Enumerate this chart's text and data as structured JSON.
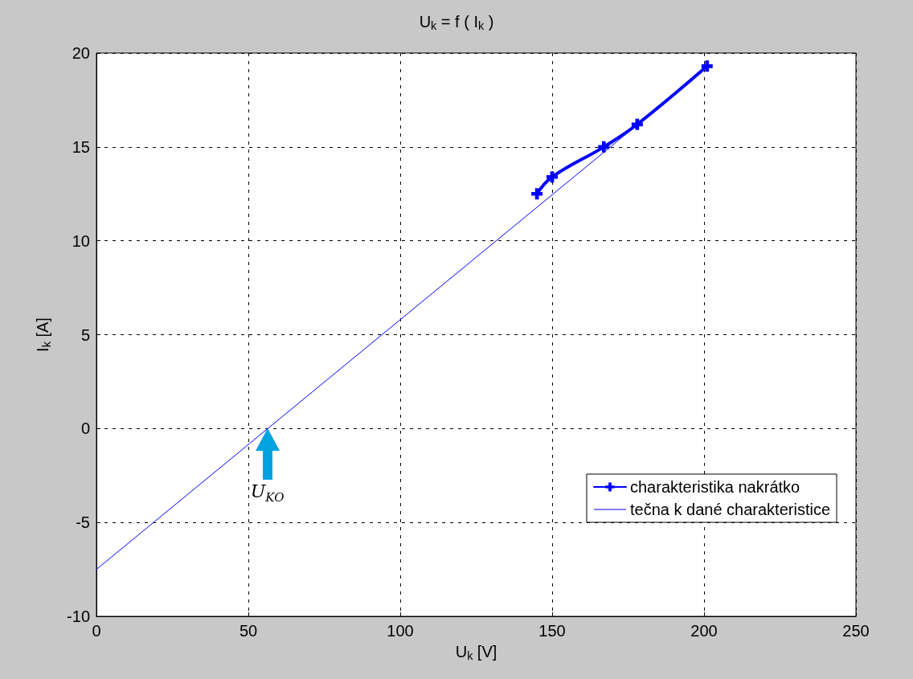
{
  "chart_data": {
    "type": "line",
    "title": "U$_{k}$ = f ( I$_{k}$ )",
    "xlabel": "U$_{k}$ [V]",
    "ylabel": "I$_{k}$ [A]",
    "series": [
      {
        "name": "charakteristika nakrátko",
        "color": "#0000ff",
        "x": [
          145,
          150,
          167,
          178,
          201
        ],
        "values": [
          12.5,
          13.4,
          15.0,
          16.2,
          19.3
        ],
        "marker": "cross",
        "line_style": "solid"
      },
      {
        "name": "tečna k dané charakteristice",
        "color": "#0000ff",
        "x": [
          0,
          200
        ],
        "values": [
          -7.5,
          19.1
        ],
        "marker": "none",
        "line_style": "solid"
      }
    ],
    "xlim": [
      0,
      250
    ],
    "xticks": [
      0,
      50,
      100,
      150,
      200,
      250
    ],
    "ylim": [
      -10,
      20
    ],
    "yticks": [
      -10,
      -5,
      0,
      5,
      10,
      15,
      20
    ],
    "grid": true,
    "legend": "bottom right",
    "annotations": [
      {
        "text": "U$_{KO}$",
        "x": 56.3,
        "y": 0
      }
    ]
  }
}
